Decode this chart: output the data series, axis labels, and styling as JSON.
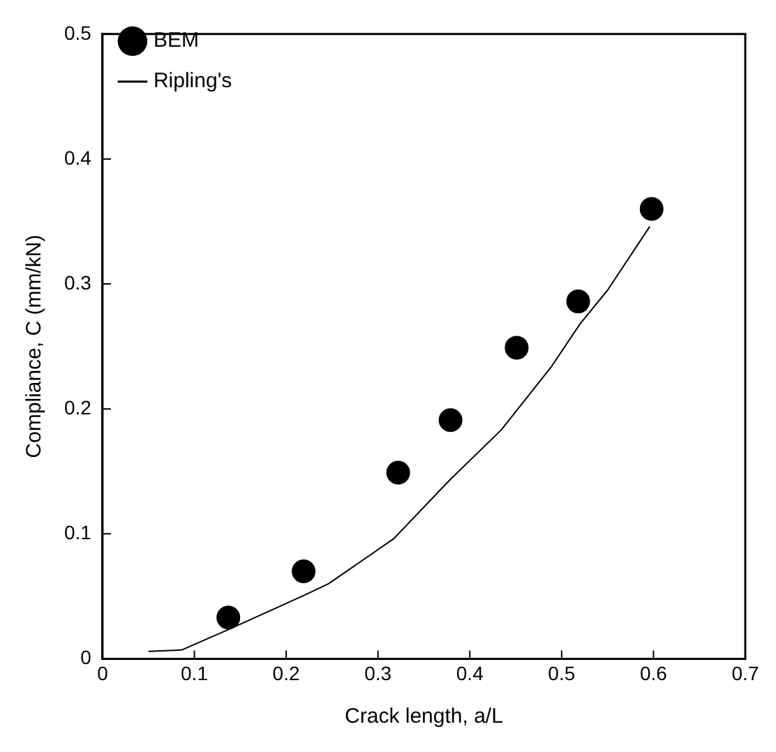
{
  "chart_data": {
    "type": "scatter",
    "xlabel": "Crack length, a/L",
    "ylabel": "Compliance, C (mm/kN)",
    "xlim": [
      0,
      0.7
    ],
    "xticks": [
      0,
      0.1,
      0.2,
      0.3,
      0.4,
      0.5,
      0.6,
      0.7
    ],
    "ylim": [
      0,
      0.5
    ],
    "yticks": [
      0,
      0.1,
      0.2,
      0.3,
      0.4,
      0.5
    ],
    "grid": false,
    "legend": "top left",
    "series": [
      {
        "name": "BEM",
        "color": "#000000",
        "marker": "circle",
        "x": [
          0.137,
          0.219,
          0.322,
          0.379,
          0.451,
          0.518,
          0.598
        ],
        "values": [
          0.033,
          0.07,
          0.149,
          0.191,
          0.249,
          0.286,
          0.36
        ]
      },
      {
        "name": "Ripling's",
        "type": "line",
        "color": "#000000",
        "marker": "none",
        "line_style": "solid",
        "x": [
          0.05,
          0.086,
          0.139,
          0.22,
          0.246,
          0.317,
          0.378,
          0.434,
          0.489,
          0.52,
          0.55,
          0.596
        ],
        "values": [
          0.006,
          0.007,
          0.024,
          0.051,
          0.06,
          0.096,
          0.143,
          0.183,
          0.234,
          0.268,
          0.295,
          0.346
        ]
      }
    ]
  }
}
